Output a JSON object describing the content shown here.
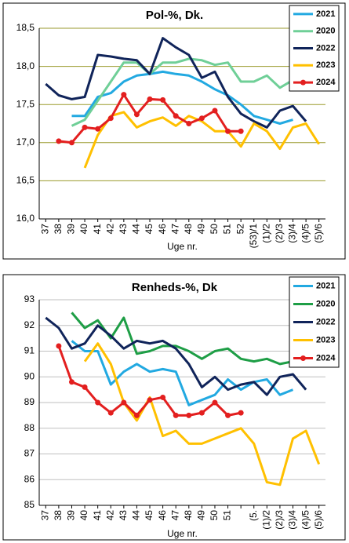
{
  "chart_data": [
    {
      "type": "line",
      "title": "Pol-%, Dk.",
      "x_label": "Uge nr.",
      "categories": [
        "37",
        "38",
        "39",
        "40",
        "41",
        "42",
        "43",
        "44",
        "45",
        "46",
        "47",
        "48",
        "49",
        "50",
        "51",
        "52",
        "(53)/1",
        "(1)/2",
        "(2)/3",
        "(3)/4",
        "(4)/5",
        "(5)/6"
      ],
      "ylim": [
        16.0,
        18.5
      ],
      "yticks": [
        {
          "value": 16.0,
          "label": "16,0"
        },
        {
          "value": 16.5,
          "label": "16,5"
        },
        {
          "value": 17.0,
          "label": "17,0"
        },
        {
          "value": 17.5,
          "label": "17,5"
        },
        {
          "value": 18.0,
          "label": "18,0"
        },
        {
          "value": 18.5,
          "label": "18,5"
        }
      ],
      "grid": true,
      "grid_color": "#9a9a2c",
      "legend": "upper right",
      "series": [
        {
          "name": "2021",
          "color": "#22a9e1",
          "values": [
            null,
            null,
            17.35,
            17.35,
            17.6,
            17.65,
            17.8,
            17.88,
            17.9,
            17.93,
            17.9,
            17.88,
            17.8,
            17.7,
            17.62,
            17.5,
            17.35,
            17.3,
            17.25,
            17.3,
            null,
            null
          ]
        },
        {
          "name": "2020",
          "color": "#6fcf97",
          "values": [
            null,
            null,
            17.22,
            17.3,
            17.55,
            17.8,
            18.05,
            18.05,
            17.9,
            18.05,
            18.05,
            18.1,
            18.08,
            18.02,
            18.05,
            17.8,
            17.8,
            17.88,
            17.72,
            17.82,
            null,
            null
          ]
        },
        {
          "name": "2022",
          "color": "#10245a",
          "values": [
            17.77,
            17.62,
            17.57,
            17.6,
            18.15,
            18.13,
            18.1,
            18.08,
            17.9,
            18.37,
            18.25,
            18.15,
            17.85,
            17.93,
            17.6,
            17.38,
            17.28,
            17.2,
            17.42,
            17.48,
            17.28,
            null
          ]
        },
        {
          "name": "2023",
          "color": "#ffc000",
          "values": [
            null,
            null,
            null,
            16.67,
            17.1,
            17.35,
            17.4,
            17.2,
            17.28,
            17.33,
            17.22,
            17.35,
            17.28,
            17.15,
            17.15,
            16.95,
            17.25,
            17.15,
            16.92,
            17.2,
            17.25,
            16.98
          ]
        },
        {
          "name": "2024",
          "color": "#e31f1f",
          "markers": true,
          "values": [
            null,
            17.02,
            17.0,
            17.2,
            17.18,
            17.32,
            17.63,
            17.37,
            17.57,
            17.56,
            17.35,
            17.25,
            17.32,
            17.42,
            17.15,
            17.15,
            null,
            null,
            null,
            null,
            null,
            null
          ]
        }
      ]
    },
    {
      "type": "line",
      "title": "Renheds-%, Dk",
      "x_label": "Uge nr.",
      "categories": [
        "37",
        "38",
        "39",
        "40",
        "41",
        "42",
        "43",
        "44",
        "45",
        "46",
        "47",
        "48",
        "49",
        "50",
        "51",
        null,
        "(5.",
        "(1)/2",
        "(2)/3",
        "(3)/4",
        "(4)/5",
        "(5)/6"
      ],
      "ylim": [
        85,
        93
      ],
      "yticks": [
        85,
        86,
        87,
        88,
        89,
        90,
        91,
        92,
        93
      ],
      "grid": true,
      "grid_color": "#bfbfbf",
      "legend": "upper right",
      "series": [
        {
          "name": "2021",
          "color": "#22a9e1",
          "values": [
            null,
            null,
            91.4,
            91.0,
            91.0,
            89.7,
            90.2,
            90.5,
            90.2,
            90.3,
            90.2,
            88.9,
            89.1,
            89.3,
            89.9,
            89.5,
            89.8,
            89.9,
            89.3,
            89.5,
            null,
            null
          ]
        },
        {
          "name": "2020",
          "color": "#1e9e46",
          "values": [
            null,
            null,
            92.5,
            91.9,
            92.2,
            91.5,
            92.3,
            90.9,
            91.0,
            91.2,
            91.2,
            91.0,
            90.7,
            91.0,
            91.1,
            90.7,
            90.6,
            90.7,
            90.5,
            90.6,
            null,
            null
          ]
        },
        {
          "name": "2022",
          "color": "#10245a",
          "values": [
            92.3,
            91.9,
            91.1,
            91.3,
            92.0,
            91.6,
            91.1,
            91.4,
            91.3,
            91.4,
            91.1,
            90.5,
            89.6,
            90.0,
            89.5,
            89.7,
            89.8,
            89.3,
            90.0,
            90.1,
            89.5,
            null
          ]
        },
        {
          "name": "2023",
          "color": "#ffc000",
          "values": [
            null,
            null,
            null,
            90.6,
            91.3,
            90.5,
            89.0,
            88.3,
            89.2,
            87.7,
            87.9,
            87.4,
            87.4,
            87.6,
            87.8,
            88.0,
            87.4,
            85.9,
            85.8,
            87.6,
            87.9,
            86.6
          ]
        },
        {
          "name": "2024",
          "color": "#e31f1f",
          "markers": true,
          "values": [
            null,
            91.2,
            89.8,
            89.6,
            89.0,
            88.6,
            89.0,
            88.5,
            89.1,
            89.2,
            88.5,
            88.5,
            88.6,
            89.0,
            88.5,
            88.6,
            null,
            null,
            null,
            null,
            null,
            null
          ]
        }
      ]
    }
  ]
}
